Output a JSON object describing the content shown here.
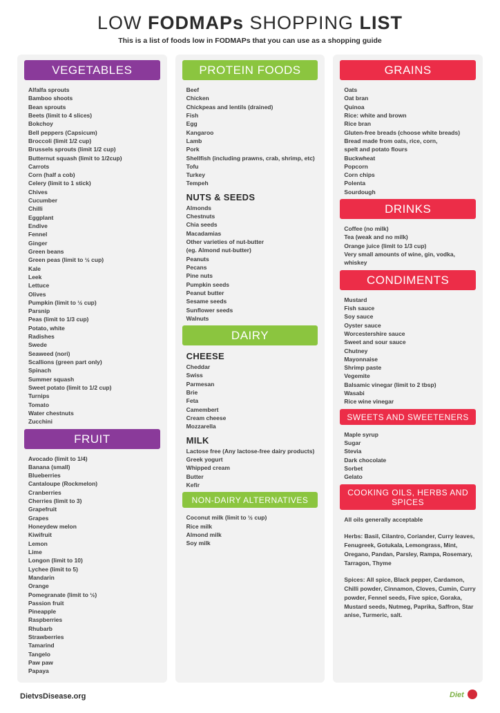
{
  "title_parts": [
    "LOW",
    "FODMAPs",
    "SHOPPING",
    "LIST"
  ],
  "subtitle": "This is a list of foods low in FODMAPs that you can use as a shopping guide",
  "colors": {
    "purple": "#8a3a9a",
    "green": "#8bc53f",
    "red": "#ec2d48",
    "col_bg": "#f2f2f2"
  },
  "col1": {
    "vegetables": {
      "title": "VEGETABLES",
      "items": [
        "Alfalfa sprouts",
        "Bamboo shoots",
        "Bean sprouts",
        "Beets (limit to 4 slices)",
        "Bokchoy",
        "Bell peppers (Capsicum)",
        "Broccoli (limit 1/2 cup)",
        "Brussels sprouts (limit 1/2 cup)",
        "Butternut squash (limit to 1/2cup)",
        "Carrots",
        "Corn (half a cob)",
        "Celery (limit to 1 stick)",
        "Chives",
        "Cucumber",
        "Chilli",
        "Eggplant",
        "Endive",
        "Fennel",
        "Ginger",
        "Green beans",
        "Green peas (limit to ½ cup)",
        "Kale",
        "Leek",
        "Lettuce",
        "Olives",
        "Pumpkin (limit to ½ cup)",
        "Parsnip",
        "Peas (limit to 1/3 cup)",
        "Potato, white",
        "Radishes",
        "Swede",
        "Seaweed (nori)",
        "Scallions (green part only)",
        "Spinach",
        "Summer squash",
        "Sweet potato (limit to 1/2 cup)",
        "Turnips",
        "Tomato",
        "Water chestnuts",
        "Zucchini"
      ]
    },
    "fruit": {
      "title": "FRUIT",
      "items": [
        "Avocado (limit to 1/4)",
        "Banana (small)",
        "Blueberries",
        "Cantaloupe (Rockmelon)",
        "Cranberries",
        "Cherries (limit to 3)",
        "Grapefruit",
        "Grapes",
        "Honeydew melon",
        "Kiwifruit",
        "Lemon",
        "Lime",
        "Longon (limit to 10)",
        "Lychee (limit to 5)",
        "Mandarin",
        "Orange",
        "Pomegranate (limit to ½)",
        "Passion fruit",
        "Pineapple",
        "Raspberries",
        "Rhubarb",
        "Strawberries",
        "Tamarind",
        "Tangelo",
        "Paw paw",
        "Papaya"
      ]
    }
  },
  "col2": {
    "protein": {
      "title": "PROTEIN FOODS",
      "items": [
        "Beef",
        "Chicken",
        "Chickpeas and lentils (drained)",
        "Fish",
        "Egg",
        "Kangaroo",
        "Lamb",
        "Pork",
        "Shellfish (including prawns, crab, shrimp, etc)",
        "Tofu",
        "Turkey",
        "Tempeh"
      ]
    },
    "nuts_seeds": {
      "title": "NUTS & SEEDS",
      "items": [
        "Almonds",
        "Chestnuts",
        "Chia seeds",
        "Macadamias",
        "Other varieties of nut-butter",
        "(eg. Almond nut-butter)",
        "Peanuts",
        "Pecans",
        "Pine nuts",
        "Pumpkin seeds",
        "Peanut butter",
        "Sesame seeds",
        "Sunflower seeds",
        "Walnuts"
      ]
    },
    "dairy": {
      "title": "DAIRY"
    },
    "cheese": {
      "title": "CHEESE",
      "items": [
        "Cheddar",
        "Swiss",
        "Parmesan",
        "Brie",
        "Feta",
        "Camembert",
        "Cream cheese",
        "Mozzarella"
      ]
    },
    "milk": {
      "title": "MILK",
      "items": [
        "Lactose free (Any lactose-free dairy products)",
        "Greek yogurt",
        "Whipped cream",
        "Butter",
        "Kefir"
      ]
    },
    "nondairy": {
      "title": "NON-DAIRY ALTERNATIVES",
      "items": [
        "Coconut milk (limit to ½ cup)",
        "Rice milk",
        "Almond milk",
        "Soy milk"
      ]
    }
  },
  "col3": {
    "grains": {
      "title": "GRAINS",
      "items": [
        "Oats",
        "Oat bran",
        "Quinoa",
        "Rice: white and brown",
        "Rice bran",
        "Gluten-free breads (choose white breads)",
        "Bread made from oats, rice, corn,",
        "spelt and potato flours",
        "Buckwheat",
        "Popcorn",
        "Corn chips",
        "Polenta",
        "Sourdough"
      ]
    },
    "drinks": {
      "title": "DRINKS",
      "items": [
        "Coffee (no milk)",
        "Tea (weak and no milk)",
        "Orange juice (limit to 1/3 cup)",
        "Very small amounts of wine, gin, vodka,",
        "whiskey"
      ]
    },
    "condiments": {
      "title": "CONDIMENTS",
      "items": [
        "Mustard",
        "Fish sauce",
        "Soy sauce",
        "Oyster sauce",
        "Worcestershire sauce",
        "Sweet and sour sauce",
        "Chutney",
        "Mayonnaise",
        "Shrimp paste",
        "Vegemite",
        "Balsamic vinegar (limit to 2 tbsp)",
        "Wasabi",
        "Rice wine vinegar"
      ]
    },
    "sweets": {
      "title": "SWEETS AND SWEETENERS",
      "items": [
        "Maple syrup",
        "Sugar",
        "Stevia",
        "Dark chocolate",
        "Sorbet",
        "Gelato"
      ]
    },
    "oils": {
      "title": "COOKING OILS, HERBS AND SPICES",
      "paras": [
        "All oils generally acceptable",
        "Herbs: Basil, Cilantro, Coriander, Curry leaves, Fenugreek, Gotukala, Lemongrass, Mint, Oregano, Pandan, Parsley, Rampa, Rosemary, Tarragon, Thyme",
        "Spices: All spice, Black pepper, Cardamon, Chilli powder, Cinnamon, Cloves, Cumin, Curry powder, Fennel seeds, Five spice, Goraka, Mustard seeds, Nutmeg, Paprika, Saffron, Star anise, Turmeric, salt."
      ]
    }
  },
  "footer": {
    "site": "DietvsDisease.org",
    "logo_text": "Diet"
  }
}
